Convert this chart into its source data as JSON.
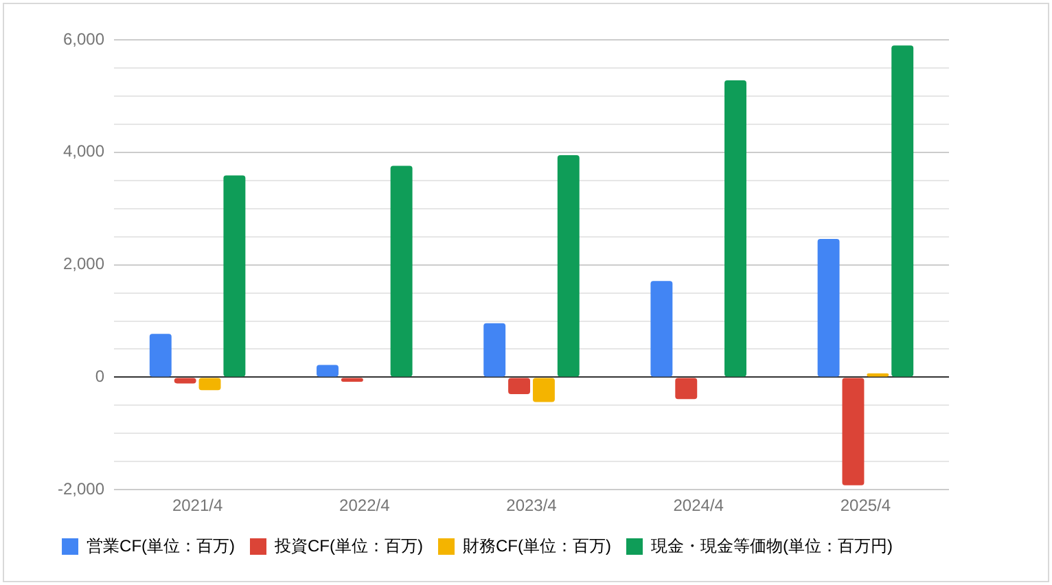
{
  "chart_data": {
    "type": "bar",
    "categories": [
      "2021/4",
      "2022/4",
      "2023/4",
      "2024/4",
      "2025/4"
    ],
    "series": [
      {
        "name": "営業CF(単位：百万)",
        "color": "#4285f4",
        "values": [
          770,
          220,
          960,
          1710,
          2460
        ]
      },
      {
        "name": "投資CF(単位：百万)",
        "color": "#db4437",
        "values": [
          -110,
          -80,
          -300,
          -390,
          -1920
        ]
      },
      {
        "name": "財務CF(単位：百万)",
        "color": "#f4b400",
        "values": [
          -230,
          null,
          -440,
          null,
          70
        ]
      },
      {
        "name": "現金・現金等価物(単位：百万円)",
        "color": "#0f9d58",
        "values": [
          3590,
          3760,
          3950,
          5280,
          5900
        ]
      }
    ],
    "ylim": [
      -2000,
      6000
    ],
    "yticks": [
      {
        "value": -2000,
        "label": "-2,000"
      },
      {
        "value": -1500,
        "label": null
      },
      {
        "value": -1000,
        "label": null
      },
      {
        "value": -500,
        "label": null
      },
      {
        "value": 0,
        "label": "0"
      },
      {
        "value": 500,
        "label": null
      },
      {
        "value": 1000,
        "label": null
      },
      {
        "value": 1500,
        "label": null
      },
      {
        "value": 2000,
        "label": "2,000"
      },
      {
        "value": 2500,
        "label": null
      },
      {
        "value": 3000,
        "label": null
      },
      {
        "value": 3500,
        "label": null
      },
      {
        "value": 4000,
        "label": "4,000"
      },
      {
        "value": 4500,
        "label": null
      },
      {
        "value": 5000,
        "label": null
      },
      {
        "value": 5500,
        "label": null
      },
      {
        "value": 6000,
        "label": "6,000"
      }
    ],
    "grid": "y",
    "legend": "bottom"
  }
}
